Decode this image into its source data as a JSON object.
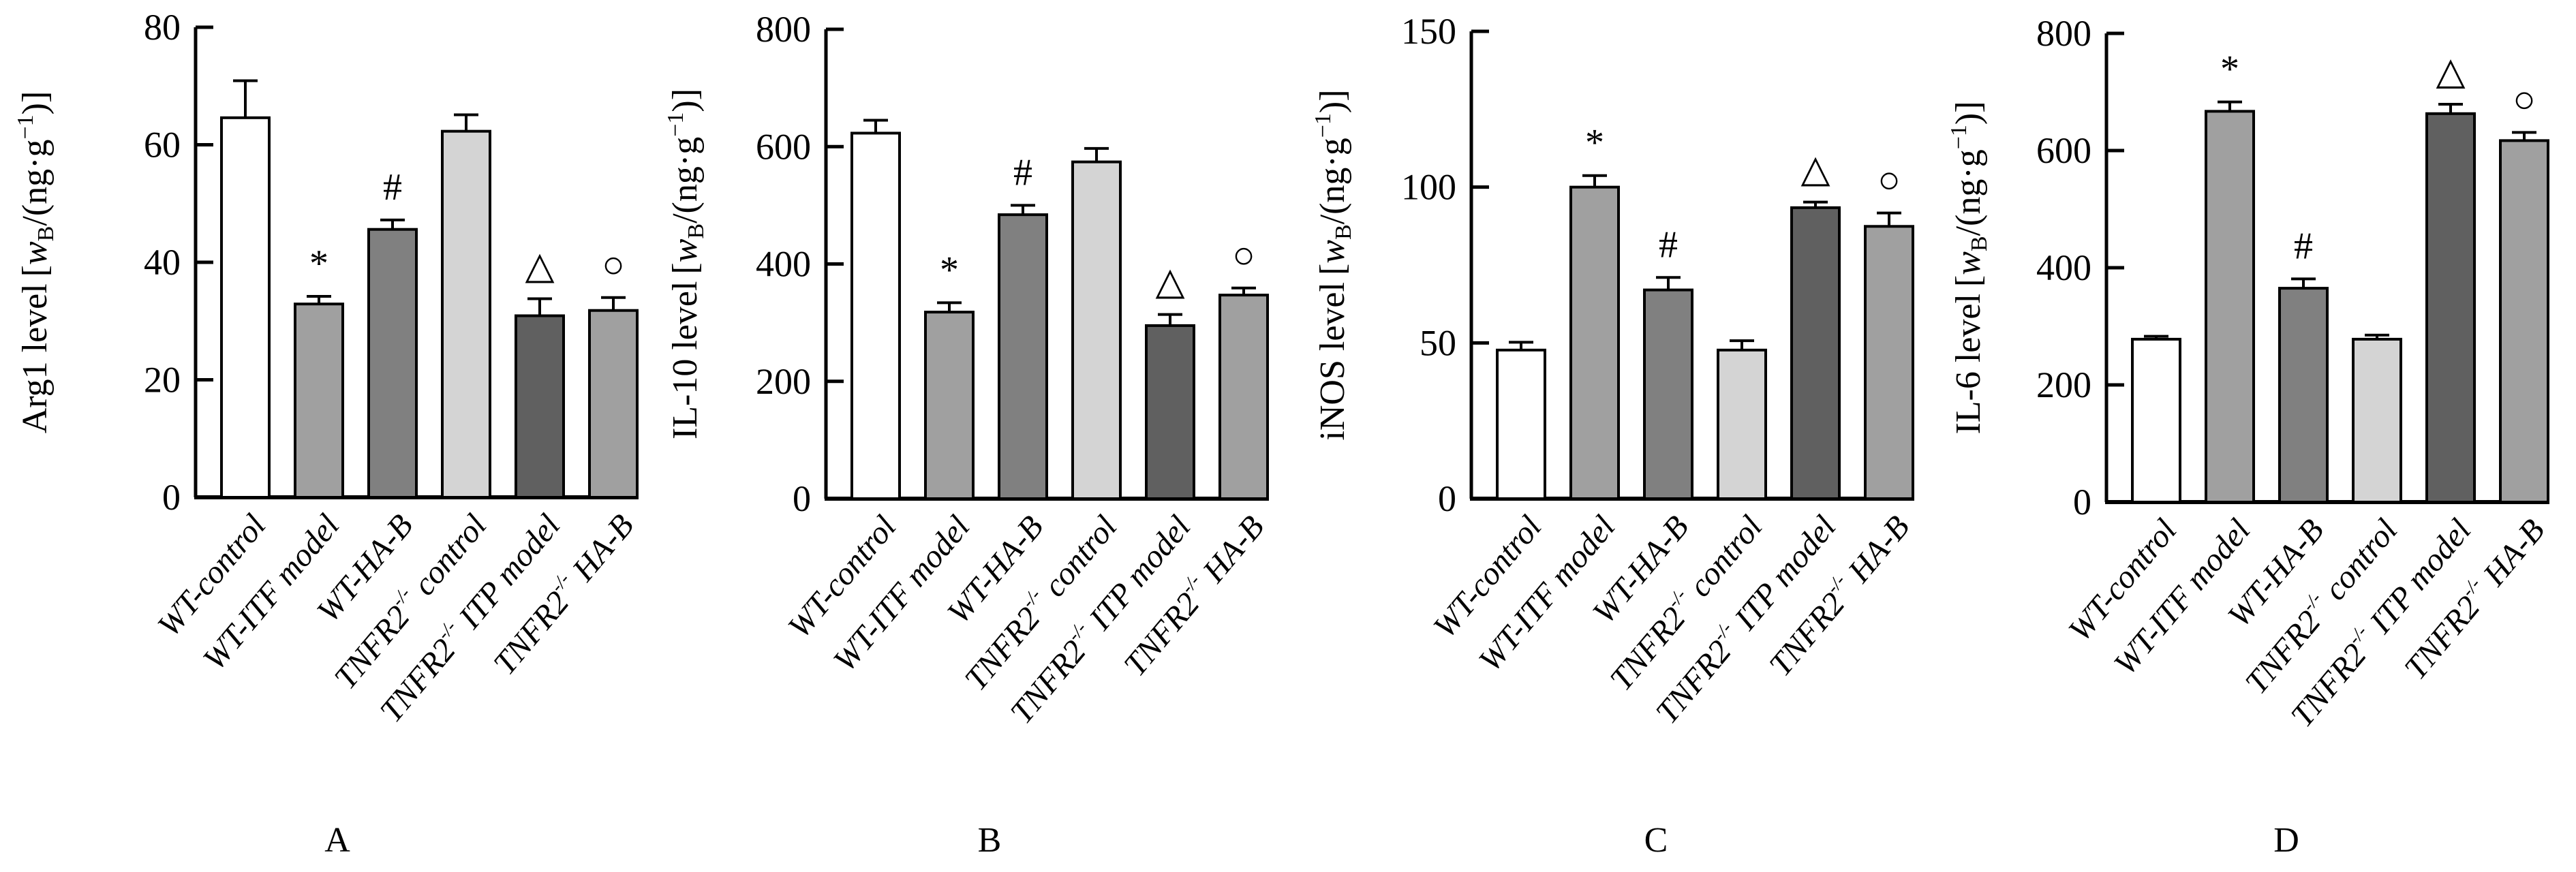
{
  "chart_data": [
    {
      "type": "bar",
      "panel": "A",
      "ylabel": {
        "name": "Arg1 level",
        "w": "w",
        "sub": "B",
        "mid": "/(ng·g",
        "sup": "−1",
        "close": ")]",
        "open": "["
      },
      "ylim": [
        0,
        80
      ],
      "yticks": [
        "0",
        "20",
        "40",
        "60",
        "80"
      ],
      "ytick_values": [
        0,
        20,
        40,
        60,
        80
      ],
      "categories": [
        "WT-control",
        "WT-ITF model",
        "WT-HA-B",
        "TNFR2 control",
        "TNFR2 ITP model",
        "TNFR2 HA-B"
      ],
      "values": [
        64.6,
        32.9,
        45.6,
        62.3,
        30.9,
        31.8
      ],
      "errors": [
        6.3,
        1.3,
        1.6,
        2.8,
        2.9,
        2.2
      ],
      "markers": [
        "",
        "*",
        "#",
        "",
        "△",
        "○"
      ]
    },
    {
      "type": "bar",
      "panel": "B",
      "ylabel": {
        "name": "IL-10 level",
        "w": "w",
        "sub": "B",
        "mid": "/(ng·g",
        "sup": "−1",
        "close": ")]",
        "open": "["
      },
      "ylim": [
        0,
        800
      ],
      "yticks": [
        "0",
        "200",
        "400",
        "600",
        "800"
      ],
      "ytick_values": [
        0,
        200,
        400,
        600,
        800
      ],
      "categories": [
        "WT-control",
        "WT-ITF model",
        "WT-HA-B",
        "TNFR2 control",
        "TNFR2 ITP model",
        "TNFR2 HA-B"
      ],
      "values": [
        623,
        318,
        484,
        574,
        295,
        347
      ],
      "errors": [
        22,
        16,
        16,
        23,
        19,
        12
      ],
      "markers": [
        "",
        "*",
        "#",
        "",
        "△",
        "○"
      ]
    },
    {
      "type": "bar",
      "panel": "C",
      "ylabel": {
        "name": "iNOS level",
        "w": "w",
        "sub": "B",
        "mid": "/(ng·g",
        "sup": "−1",
        "close": ")]",
        "open": "["
      },
      "ylim": [
        0,
        150
      ],
      "yticks": [
        "0",
        "50",
        "100",
        "150"
      ],
      "ytick_values": [
        0,
        50,
        100,
        150
      ],
      "categories": [
        "WT-control",
        "WT-ITF model",
        "WT-HA-B",
        "TNFR2 control",
        "TNFR2 ITP model",
        "TNFR2 HA-B"
      ],
      "values": [
        47.7,
        100,
        67,
        47.7,
        93.4,
        87.4
      ],
      "errors": [
        2.5,
        3.7,
        4,
        3,
        1.8,
        4.3
      ],
      "markers": [
        "",
        "*",
        "#",
        "",
        "△",
        "○"
      ]
    },
    {
      "type": "bar",
      "panel": "D",
      "ylabel": {
        "name": "IL-6 level",
        "w": "w",
        "sub": "B",
        "mid": "/(ng·g",
        "sup": "−1",
        "close": ")]",
        "open": "["
      },
      "ylim": [
        0,
        800
      ],
      "yticks": [
        "0",
        "200",
        "400",
        "600",
        "800"
      ],
      "ytick_values": [
        0,
        200,
        400,
        600,
        800
      ],
      "categories": [
        "WT-control",
        "WT-ITF model",
        "WT-HA-B",
        "TNFR2 control",
        "TNFR2 ITP model",
        "TNFR2 HA-B"
      ],
      "values": [
        278,
        667,
        365,
        278,
        663,
        617
      ],
      "errors": [
        5,
        16,
        16,
        7,
        16,
        14
      ],
      "markers": [
        "",
        "*",
        "#",
        "",
        "△",
        "○"
      ]
    }
  ],
  "category_parts": [
    {
      "pre": "WT-control",
      "sup": "",
      "post": ""
    },
    {
      "pre": "WT-ITF model",
      "sup": "",
      "post": ""
    },
    {
      "pre": "WT-HA-B",
      "sup": "",
      "post": ""
    },
    {
      "pre": "TNFR2",
      "sup": "-/-",
      "post": " control"
    },
    {
      "pre": "TNFR2",
      "sup": "-/-",
      "post": " ITP model"
    },
    {
      "pre": "TNFR2",
      "sup": "-/-",
      "post": " HA-B"
    }
  ],
  "bar_colors": [
    "#ffffff",
    "#a0a0a0",
    "#808080",
    "#d4d4d4",
    "#606060",
    "#a0a0a0"
  ]
}
